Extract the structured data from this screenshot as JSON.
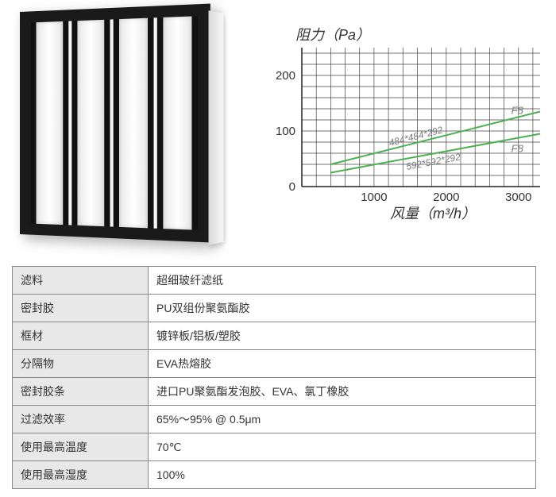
{
  "chart": {
    "type": "line",
    "ylabel": "阻力（Pa）",
    "xlabel": "风量（m³/h）",
    "ylim": [
      0,
      250
    ],
    "yticks": [
      0,
      100,
      200
    ],
    "xlim": [
      0,
      3300
    ],
    "xticks": [
      1000,
      2000,
      3000
    ],
    "label_fontsize": 18,
    "tick_fontsize": 15,
    "grid_color": "#444444",
    "background_color": "#ffffff",
    "minor_gridlines_y": [
      20,
      40,
      60,
      80,
      120,
      140,
      160,
      180,
      220,
      240
    ],
    "minor_gridlines_x": [
      200,
      400,
      600,
      800,
      1200,
      1400,
      1600,
      1800,
      2200,
      2400,
      2600,
      2800,
      3200
    ],
    "series": [
      {
        "label": "484*484*292",
        "sublabel": "F8",
        "color": "#4caf50",
        "line_width": 2,
        "points": [
          [
            400,
            40
          ],
          [
            3300,
            135
          ]
        ]
      },
      {
        "label": "592*592*292",
        "sublabel": "F8",
        "color": "#4caf50",
        "line_width": 2,
        "points": [
          [
            400,
            25
          ],
          [
            3300,
            95
          ]
        ]
      }
    ],
    "annotation_color": "#7a7a7a",
    "annotation_fontsize": 12
  },
  "specs": {
    "rows": [
      {
        "label": "滤料",
        "value": "超细玻纤滤纸"
      },
      {
        "label": "密封胶",
        "value": "PU双组份聚氨酯胶"
      },
      {
        "label": "框材",
        "value": "镀锌板/铝板/塑胶"
      },
      {
        "label": "分隔物",
        "value": "EVA热熔胶"
      },
      {
        "label": "密封胶条",
        "value": "进口PU聚氨酯发泡胶、EVA、氯丁橡胶"
      },
      {
        "label": "过滤效率",
        "value": "65%～95% @ 0.5μm"
      },
      {
        "label": "使用最高温度",
        "value": "70℃"
      },
      {
        "label": "使用最高湿度",
        "value": "100%"
      }
    ]
  }
}
